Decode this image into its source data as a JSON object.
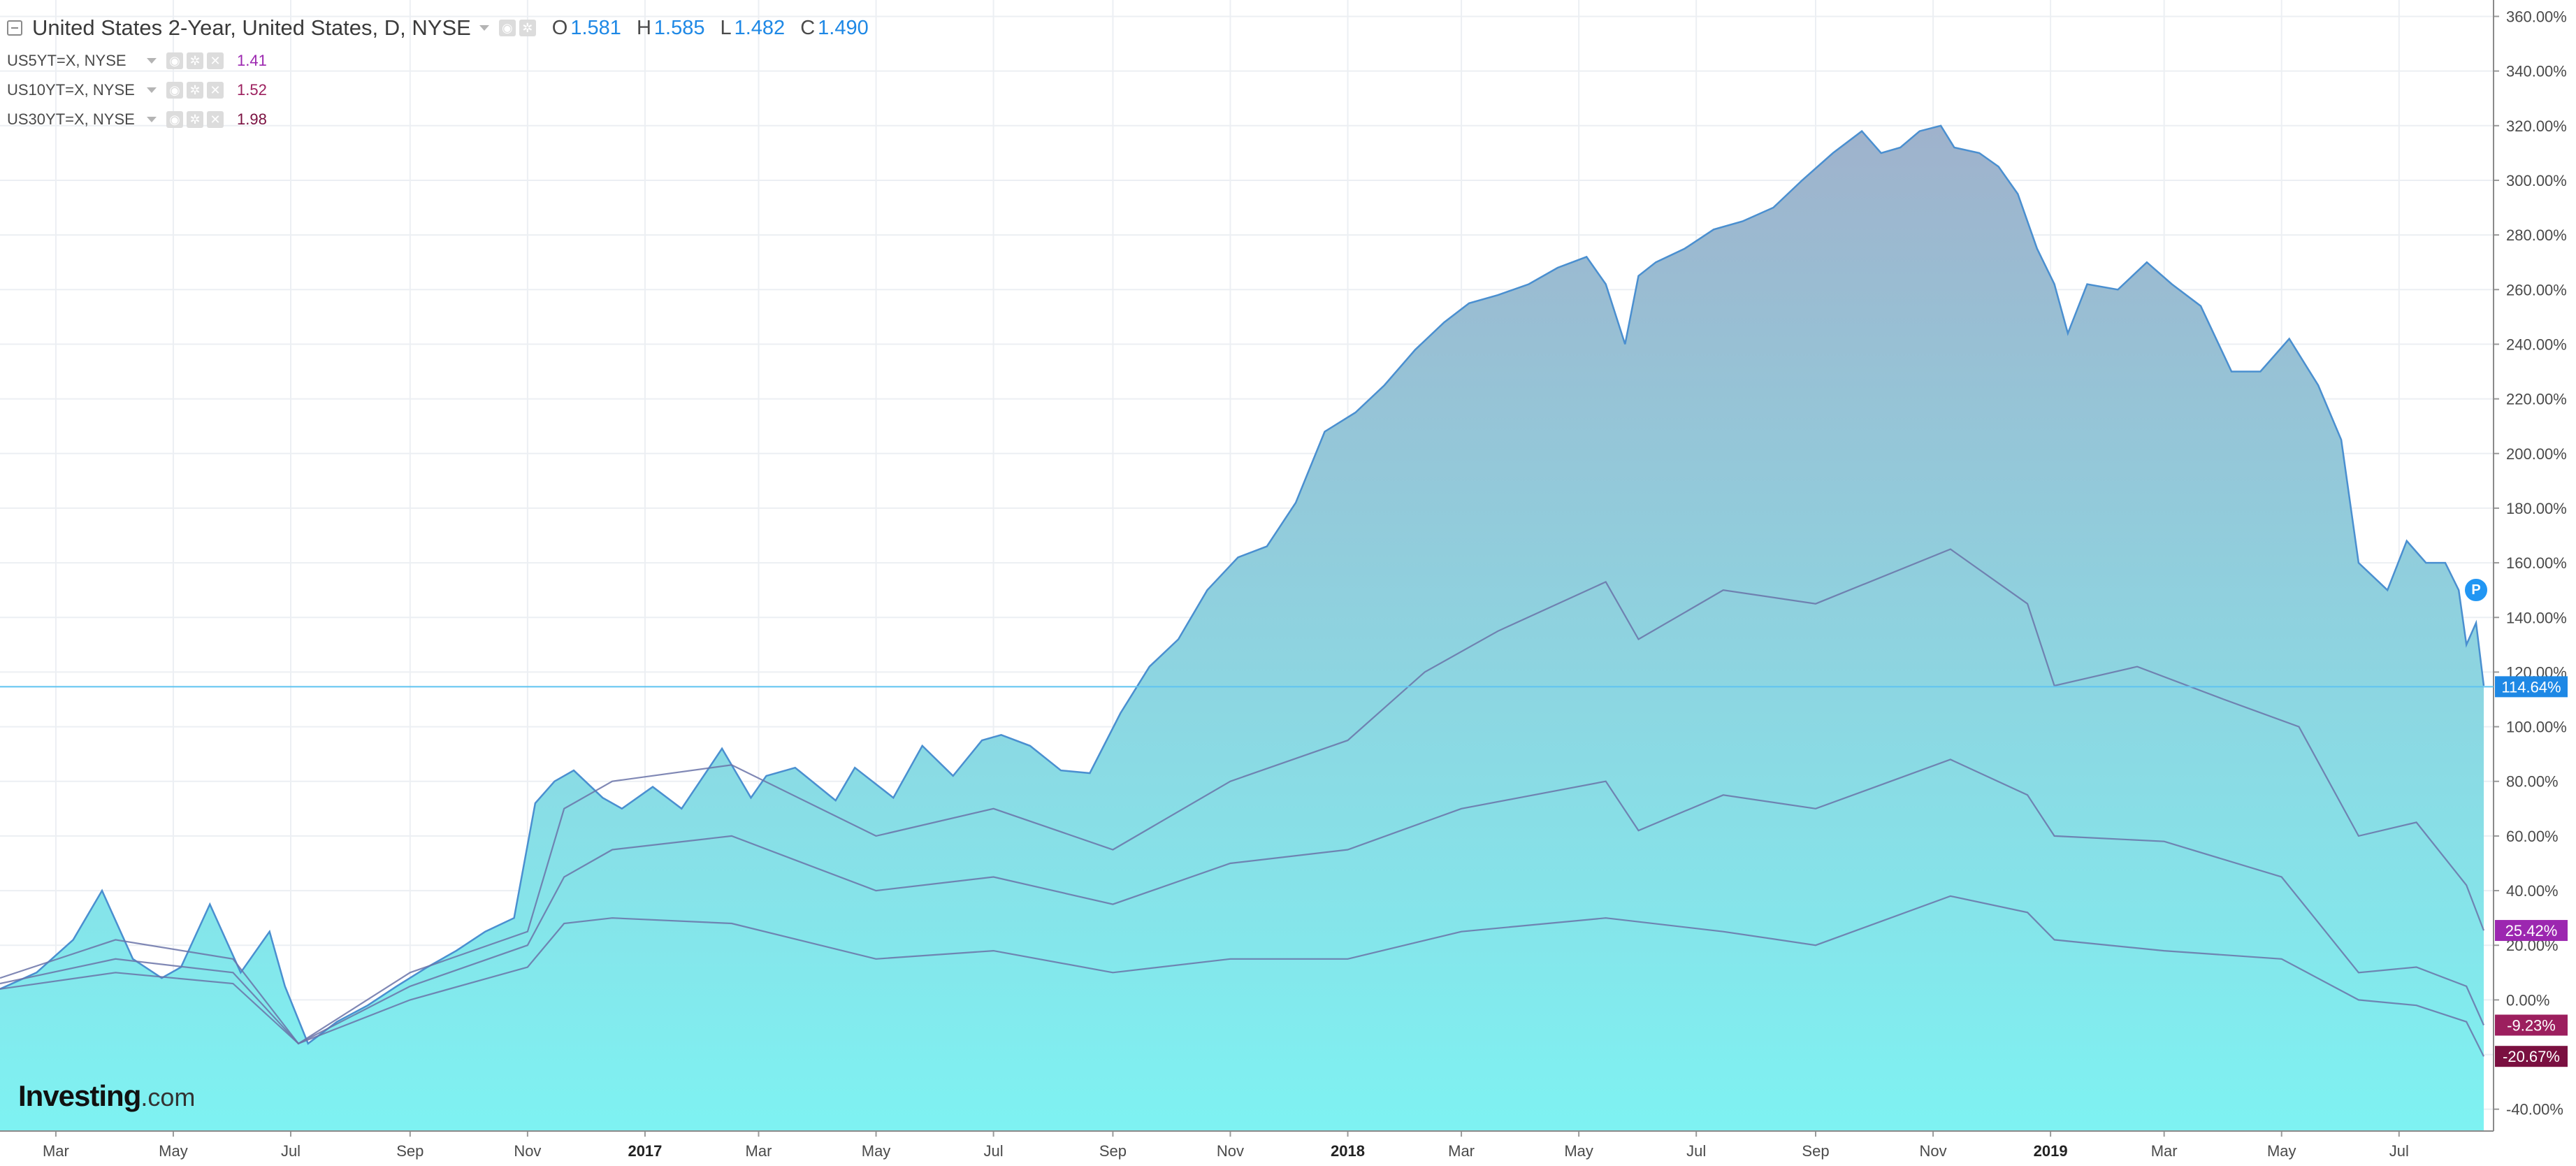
{
  "legend": {
    "title": "United States 2-Year, United States, D, NYSE",
    "ohlc": [
      {
        "k": "O",
        "v": "1.581"
      },
      {
        "k": "H",
        "v": "1.585"
      },
      {
        "k": "L",
        "v": "1.482"
      },
      {
        "k": "C",
        "v": "1.490"
      }
    ],
    "overlays": [
      {
        "symbol": "US5YT=X, NYSE",
        "value": "1.41",
        "color": "#9c27b0"
      },
      {
        "symbol": "US10YT=X, NYSE",
        "value": "1.52",
        "color": "#9c1f5e"
      },
      {
        "symbol": "US30YT=X, NYSE",
        "value": "1.98",
        "color": "#7a1040"
      }
    ]
  },
  "logo": {
    "brand": "Investing",
    "suffix": ".com"
  },
  "price_badge": "P",
  "colors": {
    "area_top": "#9fb2cc",
    "area_bottom": "#7ef2f2",
    "line": "#4a8fd0",
    "overlay_line": "#6a73a8",
    "grid": "#eceff3",
    "crosshair": "#5fc3f0",
    "label_main": "#1e88e5",
    "label_5y": "#9c27b0",
    "label_10y": "#9c1f5e",
    "label_30y": "#7a1040"
  },
  "chart_data": {
    "type": "area",
    "title": "United States 2-Year, United States, D, NYSE",
    "y_unit": "% change",
    "ylim": [
      -48,
      366
    ],
    "y_ticks": [
      "360.00%",
      "340.00%",
      "320.00%",
      "300.00%",
      "280.00%",
      "260.00%",
      "240.00%",
      "220.00%",
      "200.00%",
      "180.00%",
      "160.00%",
      "140.00%",
      "120.00%",
      "100.00%",
      "80.00%",
      "60.00%",
      "40.00%",
      "20.00%",
      "0.00%",
      "-40.00%"
    ],
    "y_tick_values": [
      360,
      340,
      320,
      300,
      280,
      260,
      240,
      220,
      200,
      180,
      160,
      140,
      120,
      100,
      80,
      60,
      40,
      20,
      0,
      -40
    ],
    "x_ticks": [
      "Mar",
      "May",
      "Jul",
      "Sep",
      "Nov",
      "2017",
      "Mar",
      "May",
      "Jul",
      "Sep",
      "Nov",
      "2018",
      "Mar",
      "May",
      "Jul",
      "Sep",
      "Nov",
      "2019",
      "Mar",
      "May",
      "Jul"
    ],
    "x_tick_dates": [
      "2016-03-01",
      "2016-05-01",
      "2016-07-01",
      "2016-09-01",
      "2016-11-01",
      "2017-01-01",
      "2017-03-01",
      "2017-05-01",
      "2017-07-01",
      "2017-09-01",
      "2017-11-01",
      "2018-01-01",
      "2018-03-01",
      "2018-05-01",
      "2018-07-01",
      "2018-09-01",
      "2018-11-01",
      "2019-01-01",
      "2019-03-01",
      "2019-05-01",
      "2019-07-01"
    ],
    "x_bold": [
      "2017",
      "2018",
      "2019"
    ],
    "xlim": [
      "2016-02-01",
      "2019-08-14"
    ],
    "grid": true,
    "current_labels": [
      {
        "series": "United States 2-Year",
        "value": 114.64,
        "text": "114.64%"
      },
      {
        "series": "US5YT=X",
        "value": 25.42,
        "text": "25.42%"
      },
      {
        "series": "US10YT=X",
        "value": -9.23,
        "text": "-9.23%"
      },
      {
        "series": "US30YT=X",
        "value": -20.67,
        "text": "-20.67%"
      }
    ],
    "series": [
      {
        "name": "United States 2-Year",
        "x": [
          "2016-02-01",
          "2016-02-20",
          "2016-03-10",
          "2016-03-25",
          "2016-04-10",
          "2016-04-25",
          "2016-05-05",
          "2016-05-20",
          "2016-06-05",
          "2016-06-20",
          "2016-06-28",
          "2016-07-10",
          "2016-07-25",
          "2016-08-10",
          "2016-08-25",
          "2016-09-10",
          "2016-09-25",
          "2016-10-10",
          "2016-10-25",
          "2016-11-05",
          "2016-11-15",
          "2016-11-25",
          "2016-12-10",
          "2016-12-20",
          "2017-01-05",
          "2017-01-20",
          "2017-02-10",
          "2017-02-25",
          "2017-03-05",
          "2017-03-20",
          "2017-04-10",
          "2017-04-20",
          "2017-05-10",
          "2017-05-25",
          "2017-06-10",
          "2017-06-25",
          "2017-07-05",
          "2017-07-20",
          "2017-08-05",
          "2017-08-20",
          "2017-09-05",
          "2017-09-20",
          "2017-10-05",
          "2017-10-20",
          "2017-11-05",
          "2017-11-20",
          "2017-12-05",
          "2017-12-20",
          "2018-01-05",
          "2018-01-20",
          "2018-02-05",
          "2018-02-20",
          "2018-03-05",
          "2018-03-20",
          "2018-04-05",
          "2018-04-20",
          "2018-05-05",
          "2018-05-15",
          "2018-05-25",
          "2018-06-01",
          "2018-06-10",
          "2018-06-25",
          "2018-07-10",
          "2018-07-25",
          "2018-08-10",
          "2018-08-25",
          "2018-09-10",
          "2018-09-25",
          "2018-10-05",
          "2018-10-15",
          "2018-10-25",
          "2018-11-05",
          "2018-11-12",
          "2018-11-25",
          "2018-12-05",
          "2018-12-15",
          "2018-12-25",
          "2019-01-03",
          "2019-01-10",
          "2019-01-20",
          "2019-02-05",
          "2019-02-20",
          "2019-03-05",
          "2019-03-20",
          "2019-04-05",
          "2019-04-20",
          "2019-05-05",
          "2019-05-20",
          "2019-06-01",
          "2019-06-10",
          "2019-06-25",
          "2019-07-05",
          "2019-07-15",
          "2019-07-25",
          "2019-08-01",
          "2019-08-05",
          "2019-08-10",
          "2019-08-14"
        ],
        "y": [
          4,
          10,
          22,
          40,
          15,
          8,
          12,
          35,
          10,
          25,
          5,
          -16,
          -8,
          -2,
          5,
          12,
          18,
          25,
          30,
          72,
          80,
          84,
          74,
          70,
          78,
          70,
          92,
          74,
          82,
          85,
          73,
          85,
          74,
          93,
          82,
          95,
          97,
          93,
          84,
          83,
          105,
          122,
          132,
          150,
          162,
          166,
          182,
          208,
          215,
          225,
          238,
          248,
          255,
          258,
          262,
          268,
          272,
          262,
          240,
          265,
          270,
          275,
          282,
          285,
          290,
          300,
          310,
          318,
          310,
          312,
          318,
          320,
          312,
          310,
          305,
          295,
          275,
          262,
          244,
          262,
          260,
          270,
          262,
          254,
          230,
          230,
          242,
          225,
          205,
          160,
          150,
          168,
          160,
          160,
          150,
          130,
          138,
          115
        ]
      },
      {
        "name": "US5YT=X",
        "x": [
          "2016-02-01",
          "2016-04-01",
          "2016-06-01",
          "2016-07-05",
          "2016-09-01",
          "2016-11-01",
          "2016-11-20",
          "2016-12-15",
          "2017-02-15",
          "2017-05-01",
          "2017-07-01",
          "2017-09-01",
          "2017-11-01",
          "2018-01-01",
          "2018-02-10",
          "2018-03-20",
          "2018-05-15",
          "2018-06-01",
          "2018-07-15",
          "2018-09-01",
          "2018-11-10",
          "2018-12-20",
          "2019-01-03",
          "2019-02-15",
          "2019-04-01",
          "2019-05-10",
          "2019-06-10",
          "2019-07-10",
          "2019-08-05",
          "2019-08-14"
        ],
        "y": [
          8,
          22,
          15,
          -16,
          10,
          25,
          70,
          80,
          86,
          60,
          70,
          55,
          80,
          95,
          120,
          135,
          153,
          132,
          150,
          145,
          165,
          145,
          115,
          122,
          110,
          100,
          60,
          65,
          42,
          25.42
        ]
      },
      {
        "name": "US10YT=X",
        "x": [
          "2016-02-01",
          "2016-04-01",
          "2016-06-01",
          "2016-07-05",
          "2016-09-01",
          "2016-11-01",
          "2016-11-20",
          "2016-12-15",
          "2017-02-15",
          "2017-05-01",
          "2017-07-01",
          "2017-09-01",
          "2017-11-01",
          "2018-01-01",
          "2018-03-01",
          "2018-05-15",
          "2018-06-01",
          "2018-07-15",
          "2018-09-01",
          "2018-11-10",
          "2018-12-20",
          "2019-01-03",
          "2019-03-01",
          "2019-05-01",
          "2019-06-10",
          "2019-07-10",
          "2019-08-05",
          "2019-08-14"
        ],
        "y": [
          6,
          15,
          10,
          -16,
          5,
          20,
          45,
          55,
          60,
          40,
          45,
          35,
          50,
          55,
          70,
          80,
          62,
          75,
          70,
          88,
          75,
          60,
          58,
          45,
          10,
          12,
          5,
          -9.23
        ]
      },
      {
        "name": "US30YT=X",
        "x": [
          "2016-02-01",
          "2016-04-01",
          "2016-06-01",
          "2016-07-05",
          "2016-09-01",
          "2016-11-01",
          "2016-11-20",
          "2016-12-15",
          "2017-02-15",
          "2017-05-01",
          "2017-07-01",
          "2017-09-01",
          "2017-11-01",
          "2018-01-01",
          "2018-03-01",
          "2018-05-15",
          "2018-07-15",
          "2018-09-01",
          "2018-11-10",
          "2018-12-20",
          "2019-01-03",
          "2019-03-01",
          "2019-05-01",
          "2019-06-10",
          "2019-07-10",
          "2019-08-05",
          "2019-08-14"
        ],
        "y": [
          4,
          10,
          6,
          -16,
          0,
          12,
          28,
          30,
          28,
          15,
          18,
          10,
          15,
          15,
          25,
          30,
          25,
          20,
          38,
          32,
          22,
          18,
          15,
          0,
          -2,
          -8,
          -20.67
        ]
      }
    ]
  }
}
